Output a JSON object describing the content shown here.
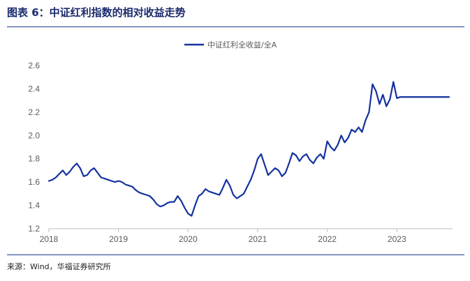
{
  "figure": {
    "title": "图表 6：中证红利指数的相对收益走势",
    "source": "来源：Wind，华福证券研究所"
  },
  "chart_data": {
    "type": "line",
    "title": "",
    "xlabel": "",
    "ylabel": "",
    "ylim": [
      1.2,
      2.6
    ],
    "yticks": [
      "1.2",
      "1.4",
      "1.6",
      "1.8",
      "2.0",
      "2.2",
      "2.4",
      "2.6"
    ],
    "xlim": [
      2018.0,
      2023.8
    ],
    "xticks": [
      "2018",
      "2019",
      "2020",
      "2021",
      "2022",
      "2023"
    ],
    "grid": false,
    "legend_position": "top-center",
    "series": [
      {
        "name": "中证红利全收益/全A",
        "color": "#1432a0",
        "x": [
          2018.0,
          2018.05,
          2018.1,
          2018.15,
          2018.2,
          2018.25,
          2018.3,
          2018.35,
          2018.4,
          2018.45,
          2018.5,
          2018.55,
          2018.6,
          2018.65,
          2018.7,
          2018.75,
          2018.8,
          2018.85,
          2018.9,
          2018.95,
          2019.0,
          2019.05,
          2019.1,
          2019.15,
          2019.2,
          2019.25,
          2019.3,
          2019.35,
          2019.4,
          2019.45,
          2019.5,
          2019.55,
          2019.6,
          2019.65,
          2019.7,
          2019.75,
          2019.8,
          2019.85,
          2019.9,
          2019.95,
          2020.0,
          2020.05,
          2020.1,
          2020.15,
          2020.2,
          2020.25,
          2020.3,
          2020.35,
          2020.4,
          2020.45,
          2020.5,
          2020.55,
          2020.6,
          2020.65,
          2020.7,
          2020.75,
          2020.8,
          2020.85,
          2020.9,
          2020.95,
          2021.0,
          2021.05,
          2021.1,
          2021.15,
          2021.2,
          2021.25,
          2021.3,
          2021.35,
          2021.4,
          2021.45,
          2021.5,
          2021.55,
          2021.6,
          2021.65,
          2021.7,
          2021.75,
          2021.8,
          2021.85,
          2021.9,
          2021.95,
          2022.0,
          2022.05,
          2022.1,
          2022.15,
          2022.2,
          2022.25,
          2022.3,
          2022.35,
          2022.4,
          2022.45,
          2022.5,
          2022.55,
          2022.6,
          2022.65,
          2022.7,
          2022.75,
          2022.8,
          2022.85,
          2022.9,
          2022.95,
          2023.0,
          2023.05,
          2023.1,
          2023.15,
          2023.2,
          2023.25,
          2023.3,
          2023.35,
          2023.4,
          2023.45,
          2023.5,
          2023.55,
          2023.6,
          2023.65,
          2023.7,
          2023.75
        ],
        "values": [
          1.61,
          1.62,
          1.64,
          1.67,
          1.7,
          1.66,
          1.69,
          1.73,
          1.76,
          1.72,
          1.65,
          1.66,
          1.7,
          1.72,
          1.68,
          1.64,
          1.63,
          1.62,
          1.61,
          1.6,
          1.61,
          1.6,
          1.58,
          1.57,
          1.56,
          1.53,
          1.51,
          1.5,
          1.49,
          1.48,
          1.45,
          1.41,
          1.39,
          1.4,
          1.42,
          1.43,
          1.43,
          1.48,
          1.44,
          1.38,
          1.33,
          1.31,
          1.4,
          1.48,
          1.5,
          1.54,
          1.52,
          1.51,
          1.5,
          1.49,
          1.55,
          1.62,
          1.57,
          1.49,
          1.46,
          1.48,
          1.5,
          1.56,
          1.62,
          1.7,
          1.8,
          1.84,
          1.75,
          1.66,
          1.69,
          1.72,
          1.7,
          1.65,
          1.68,
          1.76,
          1.85,
          1.83,
          1.78,
          1.82,
          1.84,
          1.79,
          1.76,
          1.81,
          1.84,
          1.8,
          1.95,
          1.9,
          1.87,
          1.92,
          2.0,
          1.94,
          1.98,
          2.05,
          2.03,
          2.07,
          2.03,
          2.13,
          2.2,
          2.44,
          2.38,
          2.27,
          2.35,
          2.25,
          2.31,
          2.46,
          2.32,
          2.33,
          2.33,
          2.33,
          2.33,
          2.33,
          2.33,
          2.33,
          2.33,
          2.33,
          2.33,
          2.33,
          2.33,
          2.33,
          2.33,
          2.33
        ]
      }
    ]
  }
}
